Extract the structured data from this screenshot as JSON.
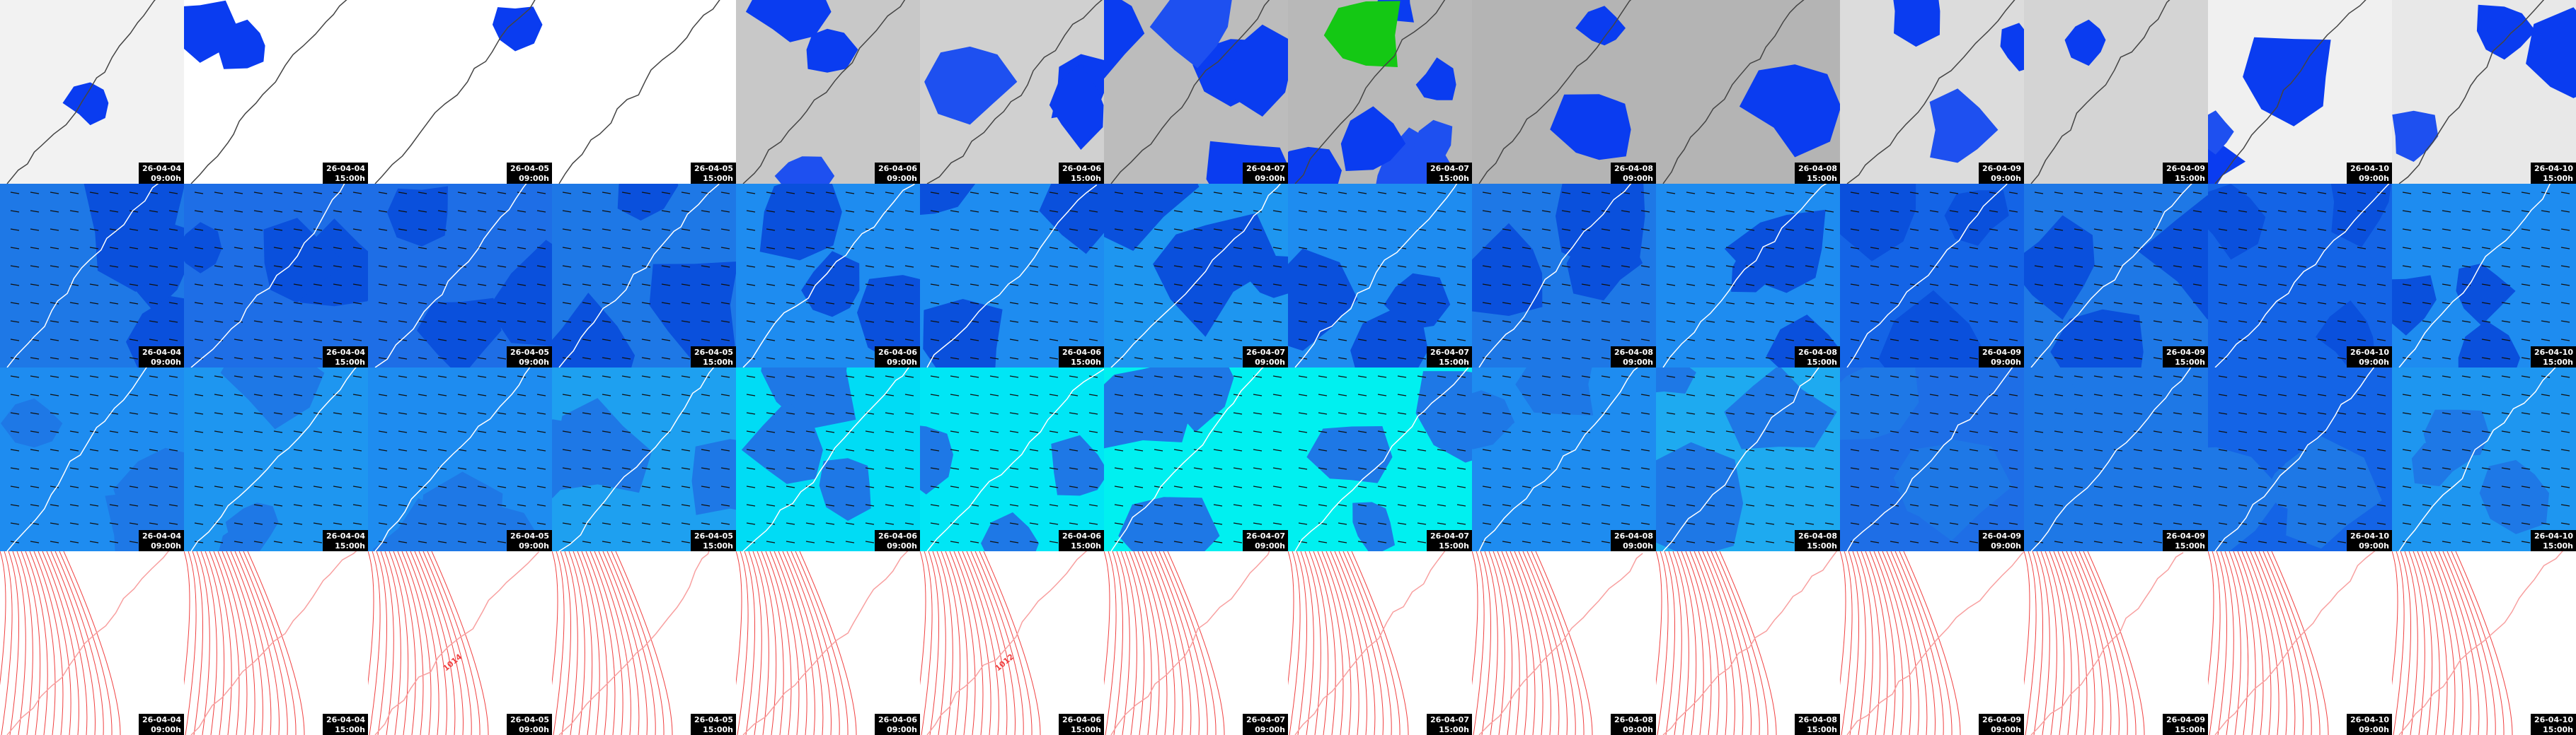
{
  "frames": [
    {
      "date": "26-04-04",
      "time": "09:00h"
    },
    {
      "date": "26-04-04",
      "time": "15:00h"
    },
    {
      "date": "26-04-05",
      "time": "09:00h"
    },
    {
      "date": "26-04-05",
      "time": "15:00h"
    },
    {
      "date": "26-04-06",
      "time": "09:00h"
    },
    {
      "date": "26-04-06",
      "time": "15:00h"
    },
    {
      "date": "26-04-07",
      "time": "09:00h"
    },
    {
      "date": "26-04-07",
      "time": "15:00h"
    },
    {
      "date": "26-04-08",
      "time": "09:00h"
    },
    {
      "date": "26-04-08",
      "time": "15:00h"
    },
    {
      "date": "26-04-09",
      "time": "09:00h"
    },
    {
      "date": "26-04-09",
      "time": "15:00h"
    },
    {
      "date": "26-04-10",
      "time": "09:00h"
    },
    {
      "date": "26-04-10",
      "time": "15:00h"
    }
  ],
  "isobar_labels": [
    {
      "frame": 2,
      "text": "1014"
    },
    {
      "frame": 5,
      "text": "1012"
    }
  ]
}
